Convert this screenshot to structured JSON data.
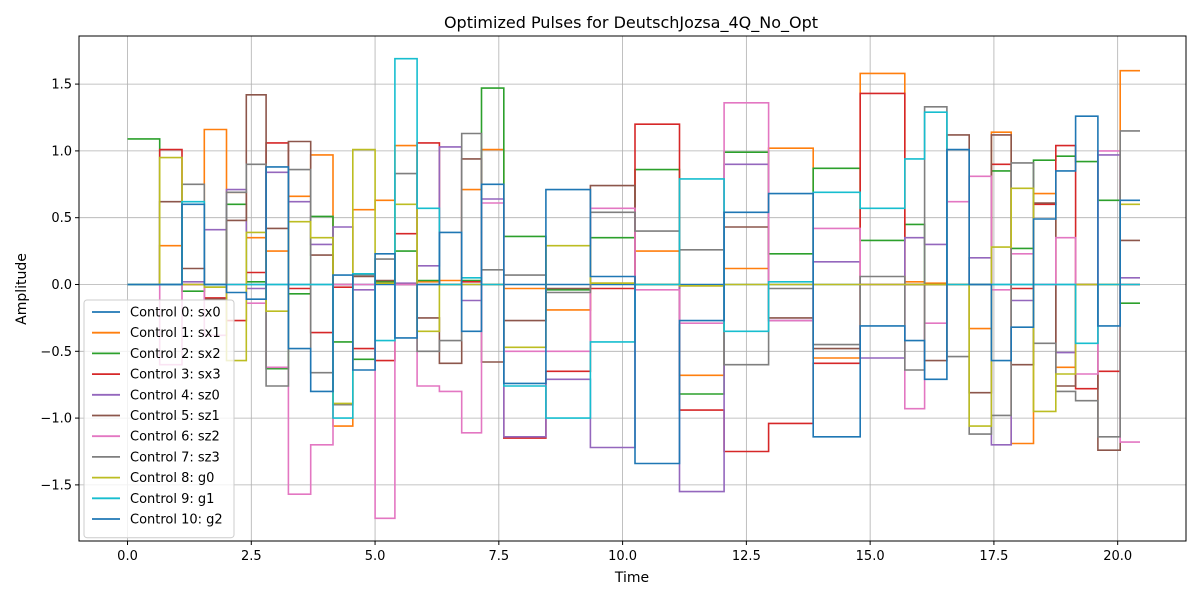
{
  "chart_data": {
    "type": "line",
    "step": "post",
    "title": "Optimized Pulses for DeutschJozsa_4Q_No_Opt",
    "xlabel": "Time",
    "ylabel": "Amplitude",
    "xlim": [
      -0.98,
      21.38
    ],
    "ylim": [
      -1.92,
      1.86
    ],
    "xticks": [
      0.0,
      2.5,
      5.0,
      7.5,
      10.0,
      12.5,
      15.0,
      17.5,
      20.0
    ],
    "xtick_labels": [
      "0.0",
      "2.5",
      "5.0",
      "7.5",
      "10.0",
      "12.5",
      "15.0",
      "17.5",
      "20.0"
    ],
    "yticks": [
      -1.5,
      -1.0,
      -0.5,
      0.0,
      0.5,
      1.0,
      1.5
    ],
    "ytick_labels": [
      "−1.5",
      "−1.0",
      "−0.5",
      "0.0",
      "0.5",
      "1.0",
      "1.5"
    ],
    "grid": true,
    "legend_position": "lower-left",
    "x": [
      0.0,
      0.65,
      1.1,
      1.55,
      2.0,
      2.4,
      2.8,
      3.25,
      3.7,
      4.15,
      4.55,
      5.0,
      5.4,
      5.85,
      6.3,
      6.75,
      7.15,
      7.6,
      8.45,
      9.35,
      10.25,
      11.15,
      12.05,
      12.95,
      13.85,
      14.8,
      15.7,
      16.1,
      16.55,
      17.0,
      17.45,
      17.85,
      18.3,
      18.75,
      19.15,
      19.6,
      20.05,
      20.45
    ],
    "series": [
      {
        "name": "Control 0: sx0",
        "color": "#1f77b4",
        "values": [
          0,
          0,
          0,
          0,
          0,
          0,
          0,
          0,
          0,
          0,
          0,
          0,
          0,
          0,
          0,
          0,
          0,
          0,
          0,
          0,
          0,
          0,
          0,
          0,
          0,
          0,
          0,
          0,
          0,
          0,
          0,
          0,
          0,
          0,
          0,
          0,
          0,
          0
        ]
      },
      {
        "name": "Control 1: sx1",
        "color": "#ff7f0e",
        "values": [
          0,
          0.29,
          0,
          1.16,
          0.69,
          0.35,
          0.25,
          0.66,
          0.97,
          -1.06,
          0.56,
          0.63,
          1.04,
          0.02,
          0.03,
          0.71,
          1.01,
          -0.03,
          -0.19,
          0.01,
          0.25,
          -0.68,
          0.12,
          1.02,
          -0.55,
          1.58,
          0.02,
          0.01,
          0.0,
          -0.33,
          1.14,
          -1.19,
          0.68,
          -0.62,
          0.0,
          0.0,
          1.6,
          1.6
        ]
      },
      {
        "name": "Control 2: sx2",
        "color": "#2ca02c",
        "values": [
          1.09,
          0,
          -0.05,
          -0.02,
          0.6,
          0.02,
          -0.63,
          -0.07,
          0.51,
          -0.43,
          -0.56,
          0.02,
          0.25,
          0.03,
          0.0,
          0.03,
          1.47,
          0.36,
          -0.04,
          0.35,
          0.86,
          -0.82,
          0.99,
          0.23,
          0.87,
          0.33,
          0.45,
          0.0,
          0.0,
          0.0,
          0.85,
          0.27,
          0.93,
          0.96,
          0.92,
          0.63,
          -0.14,
          -0.14
        ]
      },
      {
        "name": "Control 3: sx3",
        "color": "#d62728",
        "values": [
          0,
          1.01,
          0,
          -0.1,
          -0.27,
          0.09,
          1.06,
          -0.03,
          -0.36,
          -0.02,
          -0.48,
          -0.57,
          0.38,
          1.06,
          0.0,
          0.02,
          0.0,
          -1.15,
          -0.65,
          -0.03,
          1.2,
          -0.94,
          -1.25,
          -1.04,
          -0.59,
          1.43,
          0.0,
          0.0,
          0.0,
          0.0,
          0.9,
          -0.03,
          0.6,
          1.04,
          -0.78,
          -0.65,
          0.0,
          0.0
        ]
      },
      {
        "name": "Control 4: sz0",
        "color": "#9467bd",
        "values": [
          0,
          0,
          0.02,
          0.41,
          0.71,
          -0.03,
          0.84,
          0.62,
          0.3,
          0.43,
          -0.04,
          0.01,
          0.01,
          0.14,
          1.03,
          -0.12,
          0.64,
          -1.14,
          -0.71,
          -1.22,
          0.0,
          -1.55,
          0.9,
          -0.27,
          0.17,
          -0.55,
          0.35,
          0.3,
          0.0,
          0.2,
          -1.2,
          -0.12,
          0.0,
          -0.51,
          0.0,
          0.97,
          0.05,
          0.05
        ]
      },
      {
        "name": "Control 5: sz1",
        "color": "#8c564b",
        "values": [
          0,
          0.62,
          0.12,
          -0.11,
          0.48,
          1.42,
          0.42,
          1.07,
          0.22,
          0.0,
          0.06,
          0.03,
          0.0,
          -0.25,
          -0.59,
          0.94,
          -0.58,
          -0.27,
          -0.03,
          0.74,
          0.0,
          -0.01,
          0.43,
          -0.25,
          -0.48,
          0.0,
          0.0,
          -0.57,
          1.12,
          -0.81,
          1.12,
          -0.6,
          0.61,
          -0.76,
          0.0,
          -1.24,
          0.33,
          0.33
        ]
      },
      {
        "name": "Control 6: sz2",
        "color": "#e377c2",
        "values": [
          0,
          -0.6,
          0.0,
          -0.38,
          0.0,
          -0.14,
          -0.62,
          -1.57,
          -1.2,
          0.0,
          0.0,
          -1.75,
          0.0,
          -0.76,
          -0.8,
          -1.11,
          0.61,
          -0.5,
          -0.5,
          0.57,
          -0.04,
          -0.29,
          1.36,
          -0.27,
          0.42,
          0.0,
          -0.93,
          -0.29,
          0.62,
          0.81,
          -0.04,
          0.23,
          0.0,
          0.35,
          -0.67,
          1.0,
          -1.18,
          -1.18
        ]
      },
      {
        "name": "Control 7: sz3",
        "color": "#7f7f7f",
        "values": [
          0,
          0,
          0.75,
          0.0,
          0.69,
          0.9,
          -0.76,
          0.86,
          -0.66,
          -0.9,
          0.07,
          0.19,
          0.83,
          -0.5,
          -0.42,
          1.13,
          0.11,
          0.07,
          -0.06,
          0.54,
          0.4,
          0.26,
          -0.6,
          -0.03,
          -0.45,
          0.06,
          -0.64,
          1.33,
          -0.54,
          -1.12,
          -0.98,
          0.91,
          -0.44,
          -0.8,
          -0.87,
          -1.14,
          1.15,
          1.15
        ]
      },
      {
        "name": "Control 8: g0",
        "color": "#bcbd22",
        "values": [
          0,
          0.95,
          0.0,
          -0.02,
          -0.57,
          0.39,
          -0.2,
          0.47,
          0.35,
          -0.89,
          1.01,
          0.01,
          0.6,
          -0.35,
          0.0,
          0.0,
          0.0,
          -0.47,
          0.29,
          0.01,
          0.0,
          -0.01,
          0.0,
          0.0,
          0.0,
          0.0,
          0.0,
          0.0,
          0.0,
          -1.06,
          0.28,
          0.72,
          -0.95,
          -0.67,
          0.0,
          0.0,
          0.6,
          0.6
        ]
      },
      {
        "name": "Control 9: g1",
        "color": "#17becf",
        "values": [
          0,
          0,
          0.62,
          0.0,
          0.0,
          0.0,
          0.0,
          0.0,
          0.0,
          -1.0,
          0.08,
          -0.42,
          1.69,
          0.57,
          0.0,
          0.05,
          0.0,
          -0.76,
          -1.0,
          -0.43,
          0.0,
          0.79,
          -0.35,
          0.02,
          0.69,
          0.57,
          0.94,
          1.29,
          0.0,
          0.0,
          0.0,
          0.0,
          0.0,
          0.0,
          -0.44,
          0.0,
          0.0,
          0.0
        ]
      },
      {
        "name": "Control 10: g2",
        "color": "#1f77b4",
        "values": [
          0,
          0,
          0.6,
          0.0,
          -0.06,
          -0.11,
          0.88,
          -0.48,
          -0.8,
          0.07,
          -0.64,
          0.23,
          -0.4,
          0.0,
          0.39,
          -0.35,
          0.75,
          -0.74,
          0.71,
          0.06,
          -1.34,
          -0.27,
          0.54,
          0.68,
          -1.14,
          -0.31,
          -0.42,
          -0.71,
          1.01,
          0.0,
          -0.57,
          -0.32,
          0.49,
          0.85,
          1.26,
          -0.31,
          0.63,
          0.63
        ]
      }
    ]
  }
}
